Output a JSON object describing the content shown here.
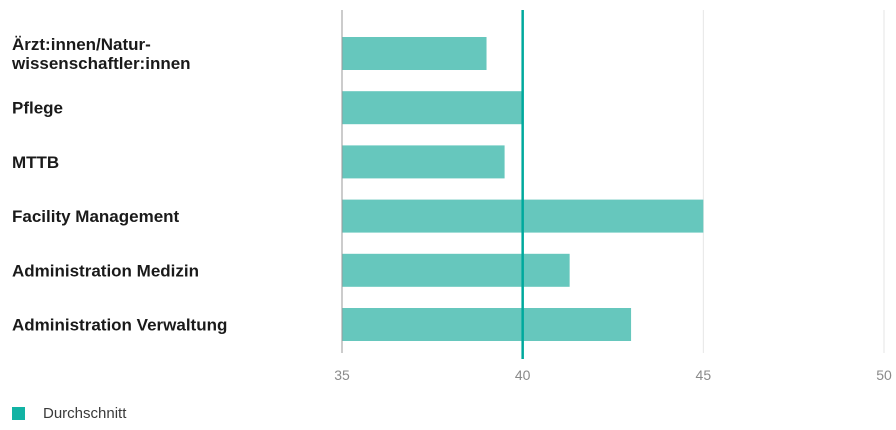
{
  "chart_data": {
    "type": "bar",
    "orientation": "horizontal",
    "categories": [
      [
        "Ärzt:innen/Natur-",
        "wissenschaftler:innen"
      ],
      [
        "Pflege"
      ],
      [
        "MTTB"
      ],
      [
        "Facility Management"
      ],
      [
        "Administration Medizin"
      ],
      [
        "Administration Verwaltung"
      ]
    ],
    "values": [
      39,
      40,
      39.5,
      45,
      41.3,
      43
    ],
    "xlim": [
      35,
      50
    ],
    "xticks": [
      "35",
      "40",
      "45",
      "50"
    ],
    "reference_line": {
      "value": 40.0,
      "label": "Durchschnitt",
      "color": "#00a99d"
    },
    "bar_color": "#66c7bd",
    "grid": true,
    "legend": {
      "position": "bottom-left",
      "entries": [
        {
          "label": "Durchschnitt",
          "color": "#12b3a4"
        }
      ]
    }
  }
}
